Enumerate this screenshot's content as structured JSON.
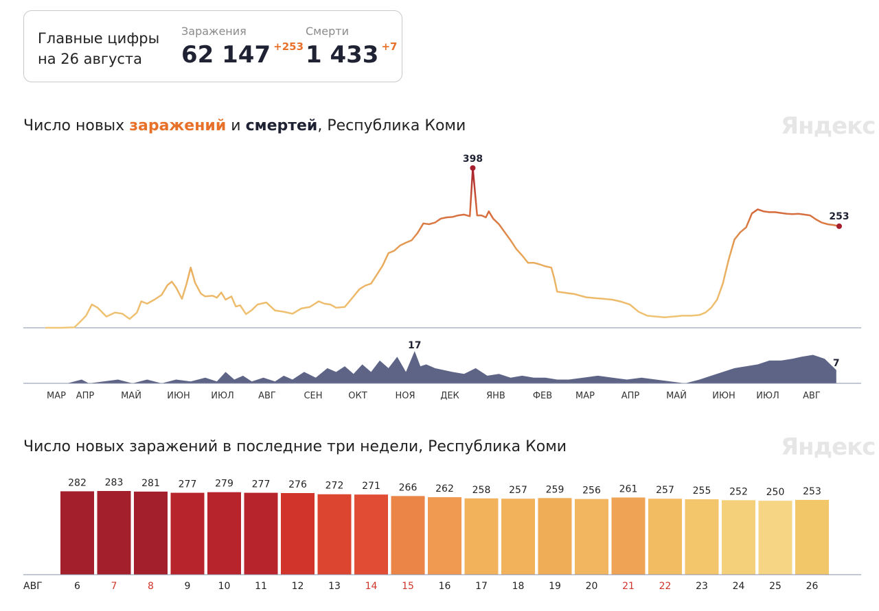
{
  "summary": {
    "title_line1": "Главные цифры",
    "title_line2": "на 26 августа",
    "infections_label": "Заражения",
    "infections_value": "62 147",
    "infections_delta": "+253",
    "deaths_label": "Смерти",
    "deaths_value": "1 433",
    "deaths_delta": "+7"
  },
  "chart1": {
    "title_prefix": "Число новых ",
    "title_infections": "заражений",
    "title_and": " и ",
    "title_deaths": "смертей",
    "title_suffix": ", Республика Коми",
    "watermark": "Яндекс"
  },
  "chart2": {
    "title": "Число новых заражений в последние три недели, Республика Коми",
    "watermark": "Яндекс"
  },
  "chart_data": [
    {
      "type": "line",
      "series": [
        {
          "values_note": "",
          "values": []
        }
      ],
      "infections_peak": 398,
      "infections_last": 253,
      "deaths_peak": 17,
      "deaths_last": 7,
      "months": [
        "МАР",
        "АПР",
        "МАЙ",
        "ИЮН",
        "ИЮЛ",
        "АВГ",
        "СЕН",
        "ОКТ",
        "НОЯ",
        "ДЕК",
        "ЯНВ",
        "ФЕВ",
        "МАР",
        "АПР",
        "МАЙ",
        "ИЮН",
        "ИЮЛ",
        "АВГ"
      ],
      "infections_points": [
        [
          0,
          0
        ],
        [
          10,
          0
        ],
        [
          20,
          1
        ],
        [
          24,
          15
        ],
        [
          28,
          30
        ],
        [
          32,
          58
        ],
        [
          36,
          50
        ],
        [
          42,
          28
        ],
        [
          48,
          38
        ],
        [
          53,
          35
        ],
        [
          58,
          22
        ],
        [
          63,
          38
        ],
        [
          66,
          66
        ],
        [
          70,
          60
        ],
        [
          75,
          70
        ],
        [
          80,
          82
        ],
        [
          84,
          106
        ],
        [
          87,
          115
        ],
        [
          90,
          100
        ],
        [
          94,
          72
        ],
        [
          97,
          108
        ],
        [
          100,
          150
        ],
        [
          103,
          112
        ],
        [
          107,
          85
        ],
        [
          110,
          78
        ],
        [
          115,
          80
        ],
        [
          118,
          75
        ],
        [
          121,
          88
        ],
        [
          124,
          70
        ],
        [
          128,
          78
        ],
        [
          131,
          53
        ],
        [
          134,
          56
        ],
        [
          138,
          34
        ],
        [
          142,
          44
        ],
        [
          146,
          58
        ],
        [
          152,
          63
        ],
        [
          158,
          43
        ],
        [
          164,
          40
        ],
        [
          170,
          35
        ],
        [
          176,
          48
        ],
        [
          182,
          52
        ],
        [
          188,
          66
        ],
        [
          192,
          60
        ],
        [
          196,
          58
        ],
        [
          200,
          50
        ],
        [
          206,
          52
        ],
        [
          212,
          78
        ],
        [
          216,
          96
        ],
        [
          220,
          105
        ],
        [
          224,
          110
        ],
        [
          228,
          132
        ],
        [
          232,
          155
        ],
        [
          236,
          186
        ],
        [
          240,
          192
        ],
        [
          244,
          205
        ],
        [
          248,
          212
        ],
        [
          252,
          218
        ],
        [
          256,
          236
        ],
        [
          260,
          260
        ],
        [
          264,
          258
        ],
        [
          268,
          262
        ],
        [
          272,
          272
        ],
        [
          276,
          275
        ],
        [
          280,
          276
        ],
        [
          284,
          280
        ],
        [
          288,
          282
        ],
        [
          292,
          278
        ],
        [
          294,
          398
        ],
        [
          297,
          280
        ],
        [
          300,
          280
        ],
        [
          303,
          275
        ],
        [
          305,
          290
        ],
        [
          308,
          272
        ],
        [
          312,
          258
        ],
        [
          316,
          238
        ],
        [
          320,
          218
        ],
        [
          324,
          196
        ],
        [
          328,
          180
        ],
        [
          332,
          162
        ],
        [
          336,
          162
        ],
        [
          340,
          158
        ],
        [
          344,
          153
        ],
        [
          348,
          150
        ],
        [
          350,
          124
        ],
        [
          352,
          90
        ],
        [
          356,
          88
        ],
        [
          360,
          86
        ],
        [
          364,
          84
        ],
        [
          368,
          80
        ],
        [
          372,
          76
        ],
        [
          378,
          74
        ],
        [
          384,
          72
        ],
        [
          390,
          70
        ],
        [
          396,
          65
        ],
        [
          402,
          58
        ],
        [
          408,
          40
        ],
        [
          414,
          30
        ],
        [
          420,
          28
        ],
        [
          426,
          26
        ],
        [
          432,
          28
        ],
        [
          438,
          30
        ],
        [
          444,
          30
        ],
        [
          450,
          32
        ],
        [
          454,
          38
        ],
        [
          458,
          50
        ],
        [
          462,
          70
        ],
        [
          466,
          110
        ],
        [
          470,
          170
        ],
        [
          474,
          220
        ],
        [
          478,
          238
        ],
        [
          482,
          250
        ],
        [
          486,
          285
        ],
        [
          490,
          295
        ],
        [
          494,
          290
        ],
        [
          498,
          288
        ],
        [
          502,
          288
        ],
        [
          506,
          286
        ],
        [
          510,
          284
        ],
        [
          514,
          283
        ],
        [
          518,
          284
        ],
        [
          522,
          282
        ],
        [
          526,
          280
        ],
        [
          530,
          270
        ],
        [
          534,
          262
        ],
        [
          538,
          258
        ],
        [
          542,
          256
        ],
        [
          546,
          253
        ]
      ],
      "deaths_points": [
        [
          0,
          0
        ],
        [
          15,
          0
        ],
        [
          25,
          2
        ],
        [
          30,
          0
        ],
        [
          40,
          1
        ],
        [
          50,
          2
        ],
        [
          60,
          0
        ],
        [
          70,
          2
        ],
        [
          80,
          0
        ],
        [
          90,
          2
        ],
        [
          100,
          1
        ],
        [
          110,
          3
        ],
        [
          118,
          1
        ],
        [
          124,
          6
        ],
        [
          130,
          2
        ],
        [
          136,
          4
        ],
        [
          142,
          1
        ],
        [
          150,
          3
        ],
        [
          158,
          1
        ],
        [
          164,
          4
        ],
        [
          170,
          2
        ],
        [
          178,
          6
        ],
        [
          186,
          3
        ],
        [
          194,
          8
        ],
        [
          200,
          6
        ],
        [
          206,
          9
        ],
        [
          212,
          5
        ],
        [
          218,
          10
        ],
        [
          224,
          6
        ],
        [
          230,
          12
        ],
        [
          236,
          8
        ],
        [
          242,
          14
        ],
        [
          248,
          6
        ],
        [
          254,
          17
        ],
        [
          258,
          9
        ],
        [
          262,
          10
        ],
        [
          268,
          8
        ],
        [
          274,
          7
        ],
        [
          280,
          6
        ],
        [
          288,
          5
        ],
        [
          296,
          8
        ],
        [
          304,
          4
        ],
        [
          312,
          5
        ],
        [
          320,
          3
        ],
        [
          328,
          4
        ],
        [
          336,
          3
        ],
        [
          344,
          3
        ],
        [
          352,
          2
        ],
        [
          360,
          2
        ],
        [
          370,
          3
        ],
        [
          380,
          4
        ],
        [
          390,
          3
        ],
        [
          400,
          2
        ],
        [
          410,
          3
        ],
        [
          420,
          2
        ],
        [
          430,
          1
        ],
        [
          440,
          0
        ],
        [
          450,
          2
        ],
        [
          458,
          4
        ],
        [
          466,
          6
        ],
        [
          474,
          8
        ],
        [
          482,
          9
        ],
        [
          490,
          10
        ],
        [
          498,
          12
        ],
        [
          506,
          12
        ],
        [
          514,
          13
        ],
        [
          520,
          14
        ],
        [
          528,
          15
        ],
        [
          536,
          13
        ],
        [
          544,
          7
        ]
      ],
      "ylim_infections": [
        0,
        398
      ],
      "ylim_deaths": [
        0,
        17
      ]
    },
    {
      "type": "bar",
      "x_prefix": "АВГ",
      "categories": [
        "6",
        "7",
        "8",
        "9",
        "10",
        "11",
        "12",
        "13",
        "14",
        "15",
        "16",
        "17",
        "18",
        "19",
        "20",
        "21",
        "22",
        "23",
        "24",
        "25",
        "26"
      ],
      "values": [
        282,
        283,
        281,
        277,
        279,
        277,
        276,
        272,
        271,
        266,
        262,
        258,
        257,
        259,
        256,
        261,
        257,
        255,
        252,
        250,
        253
      ],
      "weekend_days": [
        "7",
        "8",
        "14",
        "15",
        "21",
        "22"
      ],
      "ylim": [
        0,
        283
      ],
      "colors": [
        "#a31f2c",
        "#a31f2c",
        "#a31f2c",
        "#b8242b",
        "#b8242b",
        "#b8242b",
        "#d0342a",
        "#dc4631",
        "#e14c35",
        "#ea8547",
        "#ef9a50",
        "#f2b25c",
        "#f2b25c",
        "#f0ad57",
        "#f2b660",
        "#efa354",
        "#f2bc63",
        "#f4c66b",
        "#f5d07a",
        "#f6d684",
        "#f2c76a"
      ]
    }
  ]
}
